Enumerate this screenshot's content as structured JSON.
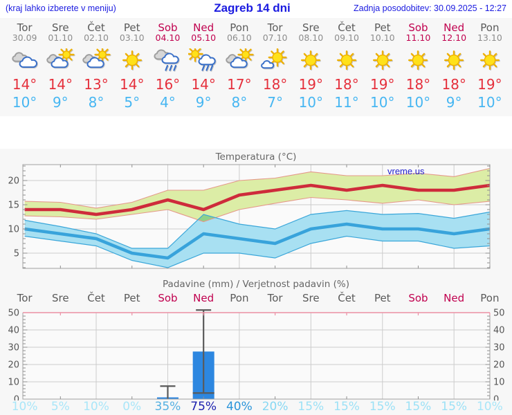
{
  "header": {
    "left_note": "(kraj lahko izberete v meniju)",
    "title": "Zagreb 14 dni",
    "updated": "Zadnja posodobitev: 30.09.2025 - 12:27"
  },
  "watermark": "vreme.us",
  "colors": {
    "header_blue": "#1a1ae0",
    "weekend": "#c0004e",
    "weekday_gray": "#5a5a5a",
    "date_gray": "#8c8c8c",
    "tmax_red": "#e5303c",
    "tmin_blue": "#46b6f2",
    "max_line": "#ce2b3b",
    "max_band_fill": "#dceda6",
    "max_band_edge": "#e5988a",
    "min_line": "#38a3db",
    "min_band_fill": "#a8e0f2",
    "min_band_edge": "#3aa6d9",
    "band_overlap": "#8ed189",
    "bar_blue": "#2d87e0",
    "whisker_gray": "#5a5a5a",
    "precip_top_edge": "#ec8fa4",
    "grid": "#cccccc",
    "axis": "#a0a0a0",
    "tick_label": "#555555",
    "title_gray": "#666666",
    "section_bg": "#f7f7f7"
  },
  "forecast": {
    "days": [
      {
        "name": "Tor",
        "date": "30.09",
        "weekend": false,
        "icon": "cloudy",
        "tmax": "14°",
        "tmin": "10°"
      },
      {
        "name": "Sre",
        "date": "01.10",
        "weekend": false,
        "icon": "partly-sunny",
        "tmax": "14°",
        "tmin": "9°"
      },
      {
        "name": "Čet",
        "date": "02.10",
        "weekend": false,
        "icon": "partly-sunny",
        "tmax": "13°",
        "tmin": "8°"
      },
      {
        "name": "Pet",
        "date": "03.10",
        "weekend": false,
        "icon": "sunny",
        "tmax": "14°",
        "tmin": "5°"
      },
      {
        "name": "Sob",
        "date": "04.10",
        "weekend": true,
        "icon": "rain",
        "tmax": "16°",
        "tmin": "4°"
      },
      {
        "name": "Ned",
        "date": "05.10",
        "weekend": true,
        "icon": "sun-rain",
        "tmax": "14°",
        "tmin": "9°"
      },
      {
        "name": "Pon",
        "date": "06.10",
        "weekend": false,
        "icon": "partly-sunny",
        "tmax": "17°",
        "tmin": "8°"
      },
      {
        "name": "Tor",
        "date": "07.10",
        "weekend": false,
        "icon": "mostly-sunny",
        "tmax": "18°",
        "tmin": "7°"
      },
      {
        "name": "Sre",
        "date": "08.10",
        "weekend": false,
        "icon": "sunny",
        "tmax": "19°",
        "tmin": "10°"
      },
      {
        "name": "Čet",
        "date": "09.10",
        "weekend": false,
        "icon": "sunny",
        "tmax": "18°",
        "tmin": "11°"
      },
      {
        "name": "Pet",
        "date": "10.10",
        "weekend": false,
        "icon": "sunny",
        "tmax": "19°",
        "tmin": "10°"
      },
      {
        "name": "Sob",
        "date": "11.10",
        "weekend": true,
        "icon": "sunny",
        "tmax": "18°",
        "tmin": "10°"
      },
      {
        "name": "Ned",
        "date": "12.10",
        "weekend": true,
        "icon": "sunny",
        "tmax": "18°",
        "tmin": "9°"
      },
      {
        "name": "Pon",
        "date": "13.10",
        "weekend": false,
        "icon": "sunny",
        "tmax": "19°",
        "tmin": "10°"
      }
    ]
  },
  "chart_data": [
    {
      "type": "line",
      "title": "Temperatura (°C)",
      "x_labels": [
        "30.09",
        "01.10",
        "02.10",
        "03.10",
        "04.10",
        "05.10",
        "06.10",
        "07.10",
        "08.10",
        "09.10",
        "10.10",
        "11.10",
        "12.10",
        "13.10"
      ],
      "ylim": [
        1.5,
        23.5
      ],
      "yticks": [
        5,
        10,
        15,
        20
      ],
      "grid": true,
      "legend_position": "none",
      "series": [
        {
          "name": "max_temp",
          "values": [
            14,
            14,
            13,
            14,
            16,
            14,
            17,
            18,
            19,
            18,
            19,
            18,
            18,
            19
          ]
        },
        {
          "name": "max_range_upper",
          "values": [
            15.7,
            15.5,
            14.3,
            15.5,
            18,
            18,
            20,
            20.5,
            21.8,
            21,
            21,
            21.5,
            20.8,
            22.5
          ]
        },
        {
          "name": "max_range_lower",
          "values": [
            12.7,
            12.5,
            12,
            13,
            14,
            11.5,
            14,
            15.3,
            16.5,
            16,
            15.3,
            16,
            15,
            15.7
          ]
        },
        {
          "name": "min_temp",
          "values": [
            10,
            9,
            8,
            5,
            4,
            9,
            8,
            7,
            10,
            11,
            10,
            10,
            9,
            10
          ]
        },
        {
          "name": "min_range_upper",
          "values": [
            11.8,
            10.5,
            9,
            6,
            6,
            13,
            11,
            10,
            13,
            13.8,
            13,
            13.2,
            12.2,
            13.5
          ]
        },
        {
          "name": "min_range_lower",
          "values": [
            8.5,
            7.5,
            6.5,
            3.5,
            2,
            5,
            5,
            4,
            7,
            8.5,
            7.5,
            7.5,
            6,
            6.5
          ]
        }
      ]
    },
    {
      "type": "bar",
      "title": "Padavine (mm) / Verjetnost padavin (%)",
      "categories": [
        "Tor",
        "Sre",
        "Čet",
        "Pet",
        "Sob",
        "Ned",
        "Pon",
        "Tor",
        "Sre",
        "Čet",
        "Pet",
        "Sob",
        "Ned",
        "Pon"
      ],
      "weekend_flags": [
        false,
        false,
        false,
        false,
        true,
        true,
        false,
        false,
        false,
        false,
        false,
        true,
        true,
        false
      ],
      "values": [
        0,
        0,
        0,
        0,
        1,
        27.5,
        0,
        0,
        0,
        0,
        0,
        0,
        0,
        0
      ],
      "whiskers": [
        {
          "index": 4,
          "low": 0,
          "high": 7.5
        },
        {
          "index": 5,
          "low": 3.5,
          "high": 51.5
        }
      ],
      "probabilities": [
        {
          "label": "10%",
          "color": "#a9e6f8"
        },
        {
          "label": "5%",
          "color": "#a9e6f8"
        },
        {
          "label": "10%",
          "color": "#a9e6f8"
        },
        {
          "label": "0%",
          "color": "#a9e6f8"
        },
        {
          "label": "35%",
          "color": "#54b0e2"
        },
        {
          "label": "75%",
          "color": "#1c20ae"
        },
        {
          "label": "40%",
          "color": "#2b95da"
        },
        {
          "label": "20%",
          "color": "#87d8f3"
        },
        {
          "label": "15%",
          "color": "#9ce1f6"
        },
        {
          "label": "15%",
          "color": "#9ce1f6"
        },
        {
          "label": "15%",
          "color": "#9ce1f6"
        },
        {
          "label": "15%",
          "color": "#9ce1f6"
        },
        {
          "label": "15%",
          "color": "#9ce1f6"
        },
        {
          "label": "10%",
          "color": "#a9e6f8"
        }
      ],
      "ylim": [
        0,
        50
      ],
      "yticks": [
        0,
        10,
        20,
        30,
        40,
        50
      ]
    }
  ]
}
